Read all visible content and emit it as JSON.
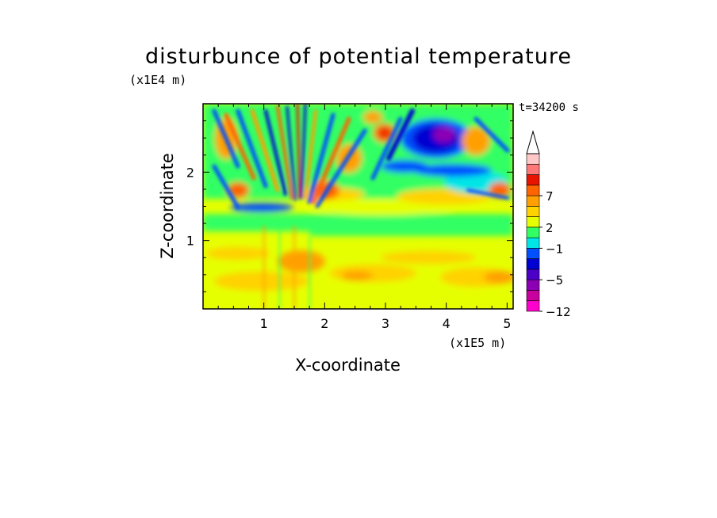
{
  "chart_data": {
    "type": "heatmap",
    "title": "disturbunce of potential temperature",
    "annotation": "t=34200 s",
    "xlabel": "X-coordinate",
    "ylabel": "Z-coordinate",
    "x_unit_label": "(x1E5 m)",
    "y_unit_label": "(x1E4 m)",
    "x_ticks": [
      "1",
      "2",
      "3",
      "4",
      "5"
    ],
    "y_ticks": [
      "1",
      "2"
    ],
    "xlim": [
      0,
      5.1
    ],
    "ylim": [
      0,
      3.0
    ],
    "colorbar": {
      "tick_labels": [
        "7",
        "2",
        "-1",
        "-5",
        "-12"
      ],
      "colors": [
        "#ff00cc",
        "#c8009e",
        "#8c00b4",
        "#4b00c8",
        "#0000d2",
        "#0050ff",
        "#00e6e6",
        "#32ff64",
        "#e6ff00",
        "#ffd200",
        "#ffa000",
        "#ff6400",
        "#e61400",
        "#ff7878",
        "#ffc8c8"
      ],
      "extend_max": true
    },
    "features": {
      "lower_layer": "warm positive disturbance (yellow/orange) below z≈1.0",
      "mid_band": "near-zero (green) band around z≈1.3-1.7",
      "upper_layer": "alternating wave pattern with cold cores (blue/purple) above z≈2.0 near x≈3.5-4.3"
    }
  }
}
